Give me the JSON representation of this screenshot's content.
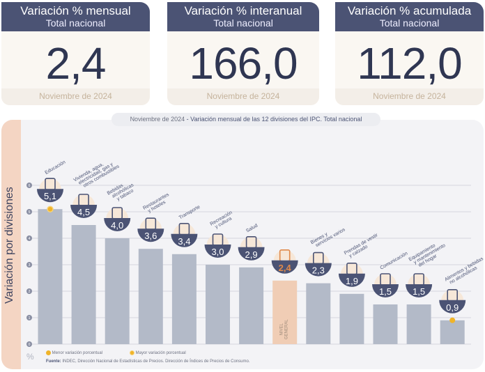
{
  "cards": [
    {
      "title": "Variación % mensual",
      "subtitle": "Total nacional",
      "value": "2,4",
      "date": "Noviembre de 2024"
    },
    {
      "title": "Variación % interanual",
      "subtitle": "Total nacional",
      "value": "166,0",
      "date": "Noviembre de 2024"
    },
    {
      "title": "Variación % acumulada",
      "subtitle": "Total nacional",
      "value": "112,0",
      "date": "Noviembre de 2024"
    }
  ],
  "chart_title_prefix": "Noviembre de 2024",
  "chart_title": " - Variación mensual de las 12 divisiones del IPC. Total nacional",
  "colors": {
    "bar": "#b3bac8",
    "general_bar": "#f0cdb5",
    "bubble": "#4b5374",
    "accent": "#e0894a",
    "marker": "#f0b429"
  },
  "legend": {
    "min": "Menor variación porcentual",
    "max": "Mayor variación porcentual"
  },
  "unit": "%",
  "source_label": "Fuente:",
  "source": " INDEC, Dirección Nacional de Estadísticas de Precios. Dirección de Índices de Precios de Consumo.",
  "chart_data": {
    "type": "bar",
    "ylabel": "Variación por divisiones",
    "ylim": [
      0,
      6
    ],
    "yticks": [
      "0",
      "1",
      "2",
      "3",
      "4",
      "5",
      "6"
    ],
    "grid": true,
    "categories": [
      [
        "Educación"
      ],
      [
        "Vivienda, agua,",
        "electricidad, gas y",
        "otros combustibles"
      ],
      [
        "Bebidas",
        "alcohólicas",
        "y tabaco"
      ],
      [
        "Restaurantes",
        "y hoteles"
      ],
      [
        "Transporte"
      ],
      [
        "Recreación",
        "y cultura"
      ],
      [
        "Salud"
      ],
      [
        "NIVEL",
        "GENERAL"
      ],
      [
        "Bienes y",
        "servicios varios"
      ],
      [
        "Prendas de vestir",
        "y calzado"
      ],
      [
        "Comunicación"
      ],
      [
        "Equipamiento",
        "y mantenimiento",
        "del hogar"
      ],
      [
        "Alimentos y bebidas",
        "no alcohólicas"
      ]
    ],
    "values": [
      5.1,
      4.5,
      4.0,
      3.6,
      3.4,
      3.0,
      2.9,
      2.4,
      2.3,
      1.9,
      1.5,
      1.5,
      0.9
    ],
    "value_labels": [
      "5,1",
      "4,5",
      "4,0",
      "3,6",
      "3,4",
      "3,0",
      "2,9",
      "2,4",
      "2,3",
      "1,9",
      "1,5",
      "1,5",
      "0,9"
    ],
    "general_index": 7,
    "max_index": 0,
    "min_index": 12
  }
}
